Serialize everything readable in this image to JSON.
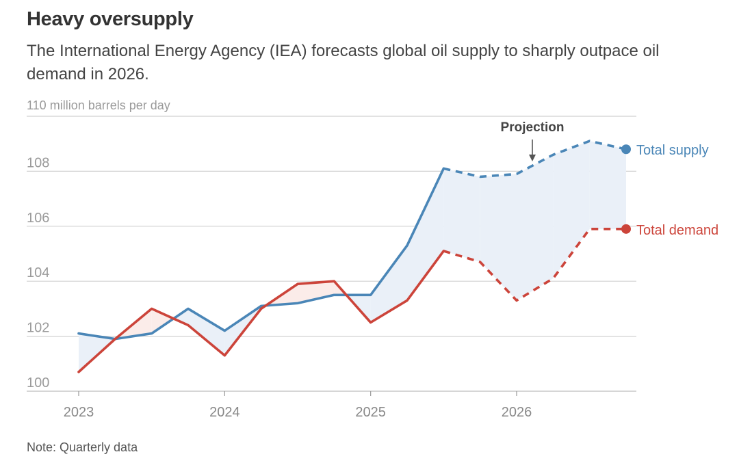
{
  "title": "Heavy oversupply",
  "subtitle": "The International Energy Agency (IEA) forecasts global oil supply to sharply outpace oil demand in 2026.",
  "note": "Note: Quarterly data",
  "chart_data": {
    "type": "line",
    "title": "Heavy oversupply",
    "ylabel": "110 million barrels per day",
    "ylim": [
      100,
      110
    ],
    "yticks": [
      100,
      102,
      104,
      106,
      108,
      110
    ],
    "ytick_labels": [
      "100",
      "102",
      "104",
      "106",
      "108",
      "110 million barrels per day"
    ],
    "x": [
      2023.0,
      2023.25,
      2023.5,
      2023.75,
      2024.0,
      2024.25,
      2024.5,
      2024.75,
      2025.0,
      2025.25,
      2025.5,
      2025.75,
      2026.0,
      2026.25,
      2026.5,
      2026.75
    ],
    "xlim": [
      2022.65,
      2026.85
    ],
    "xticks": [
      2023,
      2024,
      2025,
      2026
    ],
    "xtick_labels": [
      "2023",
      "2024",
      "2025",
      "2026"
    ],
    "projection_start_index": 10,
    "annotation": "Projection",
    "series": [
      {
        "name": "Total supply",
        "color": "#4a86b7",
        "values": [
          102.1,
          101.9,
          102.1,
          103.0,
          102.2,
          103.1,
          103.2,
          103.5,
          103.5,
          105.3,
          108.1,
          107.8,
          107.9,
          108.6,
          109.1,
          108.8
        ]
      },
      {
        "name": "Total demand",
        "color": "#cc443a",
        "values": [
          100.7,
          101.9,
          103.0,
          102.4,
          101.3,
          103.0,
          103.9,
          104.0,
          102.5,
          103.3,
          105.1,
          104.7,
          103.3,
          104.1,
          105.9,
          105.9
        ]
      }
    ],
    "fill_colors": {
      "supply_above": "#eaf0f8",
      "demand_above": "#fbece9"
    },
    "grid": true,
    "legend": "right end labels"
  }
}
